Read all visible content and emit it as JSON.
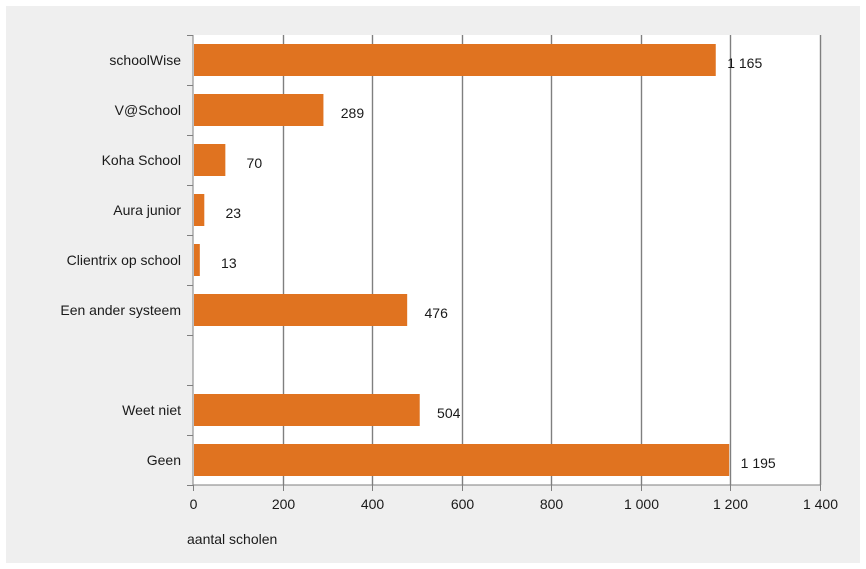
{
  "chart_data": {
    "type": "bar",
    "orientation": "horizontal",
    "categories": [
      "schoolWise",
      "V@School",
      "Koha School",
      "Aura junior",
      "Clientrix op school",
      "Een ander systeem",
      "",
      "Weet niet",
      "Geen"
    ],
    "values": [
      1165,
      289,
      70,
      23,
      13,
      476,
      null,
      504,
      1195
    ],
    "value_labels": [
      "1 165",
      "289",
      "70",
      "23",
      "13",
      "476",
      "",
      "504",
      "1 195"
    ],
    "xlabel": "aantal scholen",
    "xlim": [
      0,
      1400
    ],
    "xticks": [
      0,
      200,
      400,
      600,
      800,
      1000,
      1200,
      1400
    ],
    "xtick_labels": [
      "0",
      "200",
      "400",
      "600",
      "800",
      "1 000",
      "1 200",
      "1 400"
    ],
    "grid": "vertical",
    "bar_color": "#e07320",
    "gridline_color": "#7f7f7f"
  }
}
